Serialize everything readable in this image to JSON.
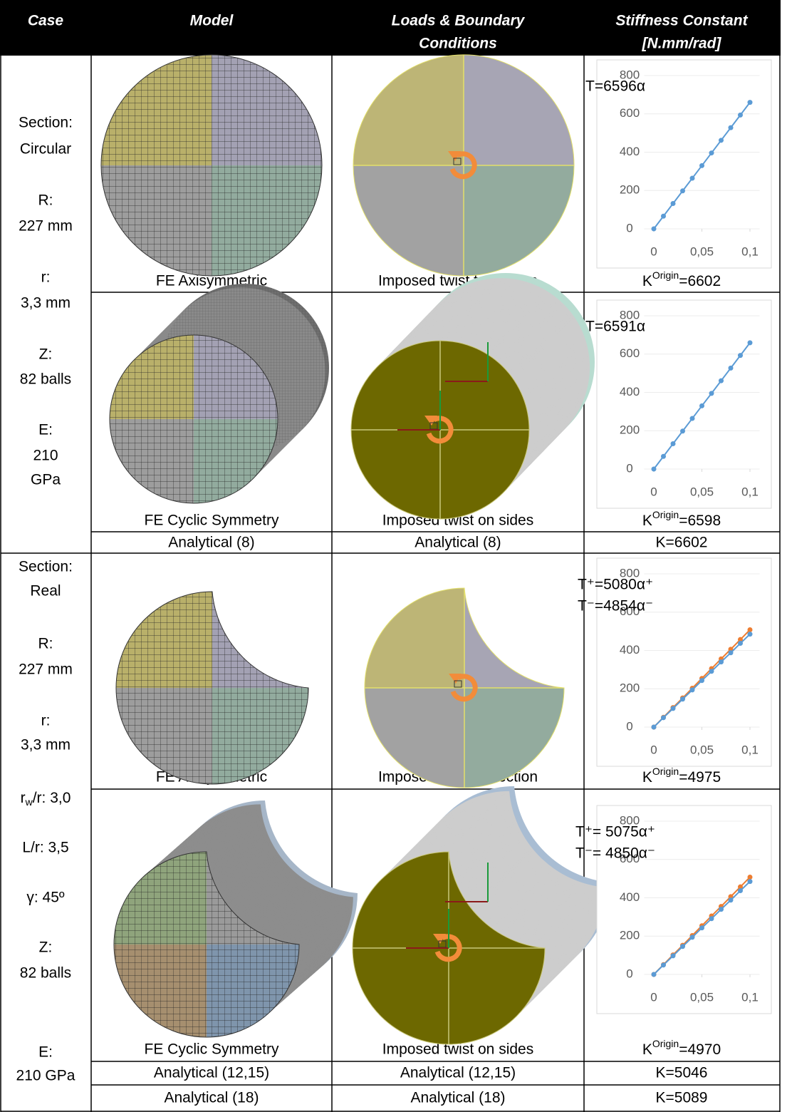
{
  "table": {
    "header": [
      [
        "Case"
      ],
      [
        "Model"
      ],
      [
        "Loads & Boundary",
        "Conditions"
      ],
      [
        "Stiffness Constant",
        "[N.mm/rad]"
      ]
    ],
    "cases": [
      {
        "description": [
          "Section:",
          "Circular",
          "R:",
          "227 mm",
          "r:",
          "3,3 mm",
          "Z:",
          "82 balls",
          "E:",
          "210",
          "GPa"
        ],
        "rows": [
          {
            "model": "FE Axisymmetric",
            "loads": "Imposed twist to section",
            "stiffness": [
              "K",
              "Origin",
              "=6602"
            ]
          },
          {
            "model": "FE Cyclic Symmetry",
            "loads": "Imposed twist on sides",
            "stiffness": [
              "K",
              "Origin",
              "=6598"
            ]
          },
          {
            "model": "Analytical (8)",
            "loads": "Analytical (8)",
            "stiffness": "K=6602"
          }
        ]
      },
      {
        "description": [
          "Section:",
          "Real",
          "R:",
          "227 mm",
          "r:",
          "3,3 mm",
          [
            "r",
            "w",
            "/r: 3,0"
          ],
          "L/r: 3,5",
          "γ: 45º",
          "Z:",
          "82 balls",
          "E:",
          "210 GPa"
        ],
        "rows": [
          {
            "model": "FE Axisymmetric",
            "loads": "Imposed twist to section",
            "stiffness": [
              "K",
              "Origin",
              "=4975"
            ]
          },
          {
            "model": "FE Cyclic Symmetry",
            "loads": "Imposed twist on sides",
            "stiffness": [
              "K",
              "Origin",
              "=4970"
            ]
          },
          {
            "model": "Analytical (12,15)",
            "loads": "Analytical (12,15)",
            "stiffness": "K=5046"
          },
          {
            "model": "Analytical (18)",
            "loads": "Analytical (18)",
            "stiffness": "K=5089"
          }
        ]
      }
    ]
  },
  "chart_data": [
    {
      "type": "line",
      "x": [
        0,
        0.01,
        0.02,
        0.03,
        0.04,
        0.05,
        0.06,
        0.07,
        0.08,
        0.09,
        0.1
      ],
      "series": [
        {
          "name": "T=6596α",
          "color": "#5b9bd5",
          "values": [
            0,
            66,
            132,
            198,
            264,
            330,
            396,
            462,
            528,
            594,
            660
          ]
        }
      ],
      "xlim": [
        -0.01,
        0.11
      ],
      "ylim": [
        0,
        800
      ],
      "yticks": [
        0,
        200,
        400,
        600,
        800
      ],
      "xticks": [
        0,
        {
          "value": 0.05,
          "label": "0,05"
        },
        {
          "value": 0.1,
          "label": "0,1"
        }
      ],
      "grid": true
    },
    {
      "type": "line",
      "x": [
        0,
        0.01,
        0.02,
        0.03,
        0.04,
        0.05,
        0.06,
        0.07,
        0.08,
        0.09,
        0.1
      ],
      "series": [
        {
          "name": "T=6591α",
          "color": "#5b9bd5",
          "values": [
            0,
            66,
            132,
            198,
            264,
            330,
            395,
            461,
            527,
            593,
            659
          ]
        }
      ],
      "xlim": [
        -0.01,
        0.11
      ],
      "ylim": [
        0,
        800
      ],
      "yticks": [
        0,
        200,
        400,
        600,
        800
      ],
      "xticks": [
        0,
        {
          "value": 0.05,
          "label": "0,05"
        },
        {
          "value": 0.1,
          "label": "0,1"
        }
      ],
      "grid": true
    },
    {
      "type": "line",
      "x": [
        0,
        0.01,
        0.02,
        0.03,
        0.04,
        0.05,
        0.06,
        0.07,
        0.08,
        0.09,
        0.1
      ],
      "series": [
        {
          "name": "T⁺=5080α⁺",
          "color": "#ed7d31",
          "values": [
            0,
            51,
            102,
            152,
            203,
            254,
            305,
            356,
            406,
            457,
            508
          ]
        },
        {
          "name": "T⁻=4854α⁻",
          "color": "#5b9bd5",
          "values": [
            0,
            49,
            97,
            146,
            194,
            243,
            291,
            340,
            388,
            437,
            485
          ]
        }
      ],
      "xlim": [
        -0.01,
        0.11
      ],
      "ylim": [
        0,
        800
      ],
      "yticks": [
        0,
        200,
        400,
        600,
        800
      ],
      "xticks": [
        0,
        {
          "value": 0.05,
          "label": "0,05"
        },
        {
          "value": 0.1,
          "label": "0,1"
        }
      ],
      "grid": true
    },
    {
      "type": "line",
      "x": [
        0,
        0.01,
        0.02,
        0.03,
        0.04,
        0.05,
        0.06,
        0.07,
        0.08,
        0.09,
        0.1
      ],
      "series": [
        {
          "name": "T⁺= 5075α⁺",
          "color": "#ed7d31",
          "values": [
            0,
            51,
            102,
            152,
            203,
            254,
            305,
            355,
            406,
            457,
            508
          ]
        },
        {
          "name": "T⁻= 4850α⁻",
          "color": "#5b9bd5",
          "values": [
            0,
            49,
            97,
            146,
            194,
            243,
            291,
            340,
            388,
            437,
            485
          ]
        }
      ],
      "xlim": [
        -0.01,
        0.11
      ],
      "ylim": [
        0,
        800
      ],
      "yticks": [
        0,
        200,
        400,
        600,
        800
      ],
      "xticks": [
        0,
        {
          "value": 0.05,
          "label": "0,05"
        },
        {
          "value": 0.1,
          "label": "0,1"
        }
      ],
      "grid": true
    }
  ]
}
